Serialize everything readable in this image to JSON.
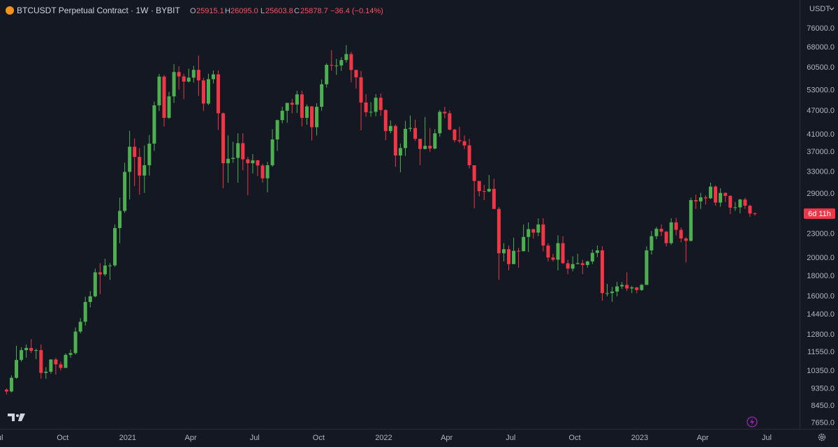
{
  "header": {
    "symbol": "BTCUSDT Perpetual Contract · 1W · BYBIT",
    "legend": [
      {
        "label": "O",
        "value": "25915.1"
      },
      {
        "label": "H",
        "value": "26095.0"
      },
      {
        "label": "L",
        "value": "25603.8"
      },
      {
        "label": "C",
        "value": "25878.7"
      }
    ],
    "change": "−36.4 (−0.14%)",
    "currency": "USDT"
  },
  "chart_data": {
    "type": "candlestick",
    "log_scale": true,
    "grid": false,
    "up_color": "#4caf50",
    "down_color": "#f23645",
    "countdown": "6d 11h",
    "ylim": [
      7400,
      89700
    ],
    "yticks": [
      {
        "value": 76000,
        "label": "76000.0"
      },
      {
        "value": 68000,
        "label": "68000.0"
      },
      {
        "value": 60500,
        "label": "60500.0"
      },
      {
        "value": 53000,
        "label": "53000.0"
      },
      {
        "value": 47000,
        "label": "47000.0"
      },
      {
        "value": 41000,
        "label": "41000.0"
      },
      {
        "value": 37000,
        "label": "37000.0"
      },
      {
        "value": 33000,
        "label": "33000.0"
      },
      {
        "value": 29000,
        "label": "29000.0"
      },
      {
        "value": 23000,
        "label": "23000.0"
      },
      {
        "value": 20000,
        "label": "20000.0"
      },
      {
        "value": 18000,
        "label": "18000.0"
      },
      {
        "value": 16000,
        "label": "16000.0"
      },
      {
        "value": 14400,
        "label": "14400.0"
      },
      {
        "value": 12800,
        "label": "12800.0"
      },
      {
        "value": 11550,
        "label": "11550.0"
      },
      {
        "value": 10350,
        "label": "10350.0"
      },
      {
        "value": 9350,
        "label": "9350.0"
      },
      {
        "value": 8450,
        "label": "8450.0"
      },
      {
        "value": 7650,
        "label": "7650.0"
      }
    ],
    "xticks": [
      {
        "value": -1.7,
        "label": "Jul"
      },
      {
        "value": 11.4,
        "label": "Oct"
      },
      {
        "value": 24.6,
        "label": "2021"
      },
      {
        "value": 37.4,
        "label": "Apr"
      },
      {
        "value": 50.4,
        "label": "Jul"
      },
      {
        "value": 63.4,
        "label": "Oct"
      },
      {
        "value": 76.6,
        "label": "2022"
      },
      {
        "value": 89.4,
        "label": "Apr"
      },
      {
        "value": 102.4,
        "label": "Jul"
      },
      {
        "value": 115.4,
        "label": "Oct"
      },
      {
        "value": 128.6,
        "label": "2023"
      },
      {
        "value": 141.4,
        "label": "Apr"
      },
      {
        "value": 154.4,
        "label": "Jul"
      }
    ],
    "open": [
      9300,
      9200,
      9960,
      11050,
      11700,
      11850,
      11650,
      11700,
      10250,
      10320,
      11080,
      10770,
      10550,
      11380,
      11500,
      13030,
      13800,
      15480,
      16000,
      18400,
      18180,
      19140,
      19150,
      23800,
      26300,
      33000,
      38200,
      36000,
      32300,
      34300,
      38900,
      48600,
      57450,
      45200,
      51200,
      59000,
      57500,
      55800,
      57100,
      59750,
      56200,
      49100,
      56600,
      58200,
      46400,
      34700,
      35600,
      35800,
      39000,
      35500,
      34700,
      35300,
      34250,
      31780,
      34300,
      39850,
      44600,
      47100,
      49300,
      48800,
      51800,
      45200,
      48300,
      42800,
      48200,
      54950,
      61500,
      61300,
      61300,
      63250,
      65500,
      59700,
      57200,
      49400,
      46700,
      46800,
      50800,
      47300,
      41850,
      43100,
      36300,
      37900,
      42400,
      42600,
      40000,
      37700,
      38400,
      37800,
      41300,
      46800,
      46400,
      42200,
      39700,
      39450,
      38500,
      34300,
      31300,
      29500,
      29450,
      29900,
      26600,
      20550,
      21050,
      19300,
      20850,
      20800,
      22600,
      23650,
      23180,
      24300,
      21500,
      20050,
      19800,
      21800,
      19400,
      18800,
      19300,
      19400,
      19200,
      19600,
      20600,
      20900,
      16300,
      16300,
      16450,
      16950,
      17100,
      16750,
      16850,
      16600,
      17100,
      20900,
      22700,
      23700,
      23300,
      21800,
      24600,
      23550,
      22400,
      22100,
      28000,
      27800,
      28450,
      28300,
      30300,
      27600,
      29200,
      28700,
      26800,
      26850,
      28100,
      27100,
      25915.1
    ],
    "high": [
      9360,
      10100,
      12000,
      11900,
      12090,
      12470,
      11800,
      12100,
      10600,
      11100,
      11180,
      10950,
      11480,
      11740,
      13350,
      14100,
      15960,
      16500,
      18800,
      19400,
      19900,
      19400,
      24300,
      28400,
      34800,
      41900,
      40100,
      37900,
      38500,
      40900,
      49700,
      58350,
      58000,
      52600,
      61800,
      61000,
      58400,
      60200,
      61200,
      64900,
      57000,
      58400,
      59500,
      59600,
      46600,
      40800,
      39300,
      41300,
      41300,
      36000,
      36600,
      35400,
      34600,
      35000,
      42300,
      44700,
      48200,
      49300,
      50500,
      52900,
      52900,
      48850,
      48400,
      49200,
      56500,
      62000,
      67000,
      63700,
      64300,
      69000,
      66300,
      59800,
      59400,
      51900,
      49500,
      51900,
      52100,
      47500,
      44500,
      43500,
      38900,
      44400,
      45800,
      44700,
      40000,
      45400,
      42600,
      42300,
      47300,
      48200,
      47200,
      42400,
      42900,
      40800,
      40000,
      34300,
      31300,
      30600,
      32400,
      31700,
      26900,
      21800,
      21500,
      22500,
      21200,
      24300,
      24600,
      23700,
      25200,
      25200,
      21800,
      20500,
      22800,
      22700,
      19800,
      20200,
      20500,
      19800,
      19700,
      21000,
      21500,
      21400,
      17200,
      16900,
      17400,
      17400,
      18400,
      17000,
      16900,
      17200,
      21400,
      23400,
      23950,
      24300,
      23400,
      25200,
      25250,
      23900,
      22600,
      28400,
      28900,
      29200,
      28800,
      31000,
      30500,
      30000,
      29300,
      28800,
      27700,
      28200,
      28400,
      27300,
      26095
    ],
    "low": [
      9050,
      9150,
      9900,
      10950,
      11200,
      11500,
      11100,
      9900,
      9900,
      10200,
      10150,
      10400,
      10550,
      11200,
      11400,
      12900,
      13500,
      15000,
      15900,
      16200,
      18000,
      17600,
      19000,
      21800,
      26000,
      28100,
      30400,
      28900,
      29200,
      32300,
      37300,
      47000,
      43000,
      44900,
      49300,
      53300,
      50400,
      55500,
      55500,
      51300,
      47000,
      48700,
      55200,
      42100,
      30000,
      31000,
      34800,
      31000,
      33300,
      28800,
      32700,
      32200,
      31000,
      29300,
      34000,
      37300,
      43800,
      43900,
      46400,
      46500,
      43000,
      43400,
      39600,
      40800,
      47100,
      53900,
      59500,
      58000,
      59400,
      62300,
      55600,
      53600,
      42000,
      45500,
      45500,
      45600,
      45700,
      39700,
      41300,
      34000,
      32900,
      36200,
      41700,
      39500,
      34300,
      37600,
      37100,
      37600,
      40500,
      45100,
      42000,
      39200,
      39000,
      37700,
      33700,
      26700,
      28600,
      28000,
      29300,
      26600,
      17600,
      19600,
      18600,
      19300,
      18900,
      20800,
      20700,
      22400,
      22700,
      20800,
      19600,
      19600,
      18600,
      19300,
      18200,
      18500,
      19300,
      18200,
      18900,
      19300,
      20100,
      15600,
      16000,
      15500,
      16000,
      16700,
      16500,
      16300,
      16300,
      16500,
      17100,
      20400,
      22300,
      22700,
      21400,
      21600,
      22800,
      21900,
      19500,
      22000,
      26600,
      26600,
      27300,
      28200,
      27100,
      26950,
      27700,
      25800,
      26300,
      25900,
      26600,
      25400,
      25603.8
    ],
    "close": [
      9200,
      9960,
      11050,
      11700,
      11850,
      11650,
      11700,
      10250,
      10320,
      11080,
      10770,
      10550,
      11380,
      11500,
      13030,
      13800,
      15480,
      16000,
      18400,
      18180,
      19140,
      19150,
      23800,
      26300,
      33000,
      38200,
      36000,
      32300,
      34300,
      38900,
      48600,
      57450,
      45200,
      51200,
      59000,
      57500,
      55800,
      57100,
      59750,
      56200,
      49100,
      56600,
      58200,
      46400,
      34700,
      35600,
      35800,
      39000,
      35500,
      34700,
      35300,
      34250,
      31780,
      34300,
      39850,
      44600,
      47100,
      49300,
      48800,
      51800,
      45200,
      48300,
      42800,
      48200,
      54950,
      61500,
      61300,
      61300,
      63250,
      65500,
      59700,
      57200,
      49400,
      46700,
      46800,
      50800,
      47300,
      41850,
      43100,
      36300,
      37900,
      42400,
      42600,
      40000,
      37700,
      38400,
      37800,
      41300,
      46800,
      46400,
      42200,
      39700,
      39450,
      38500,
      34300,
      31300,
      29500,
      29450,
      29900,
      26600,
      20550,
      21050,
      19300,
      20850,
      20800,
      22600,
      23650,
      23180,
      24300,
      21500,
      20050,
      19800,
      21800,
      19400,
      18800,
      19300,
      19400,
      19200,
      19600,
      20600,
      20900,
      16300,
      16300,
      16450,
      16950,
      17100,
      16750,
      16850,
      16600,
      17100,
      20900,
      22700,
      23700,
      23300,
      21800,
      24600,
      23550,
      22400,
      22100,
      28000,
      27800,
      28450,
      28300,
      30300,
      27600,
      29200,
      28700,
      26800,
      26850,
      28100,
      27100,
      25900,
      25878.7
    ]
  }
}
